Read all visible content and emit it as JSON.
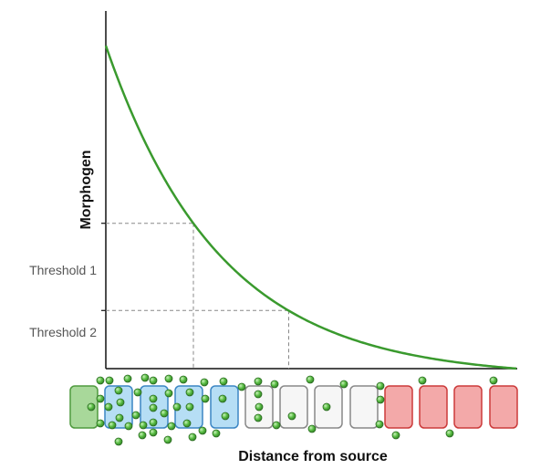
{
  "diagram": {
    "y_axis_label": "Morphogen",
    "x_axis_label": "Distance from source",
    "thresholds": [
      {
        "label": "Threshold 1",
        "level": 0.45
      },
      {
        "label": "Threshold 2",
        "level": 0.18
      }
    ],
    "curve": {
      "type": "decay",
      "color": "#3a9a2e",
      "start_level": 1.0
    },
    "cells": [
      {
        "type": "source",
        "fill": "#a8d89a",
        "stroke": "#4f9a3e"
      },
      {
        "type": "blue"
      },
      {
        "type": "blue"
      },
      {
        "type": "blue"
      },
      {
        "type": "blue"
      },
      {
        "type": "white"
      },
      {
        "type": "white"
      },
      {
        "type": "white"
      },
      {
        "type": "white"
      },
      {
        "type": "red"
      },
      {
        "type": "red"
      },
      {
        "type": "red"
      },
      {
        "type": "red"
      }
    ],
    "cell_colors": {
      "blue": {
        "fill": "#b6def5",
        "stroke": "#3c86c4"
      },
      "white": {
        "fill": "#f6f6f6",
        "stroke": "#888888"
      },
      "red": {
        "fill": "#f3a9a9",
        "stroke": "#cc3a3a"
      }
    },
    "molecule_color": "#4caf3c"
  }
}
